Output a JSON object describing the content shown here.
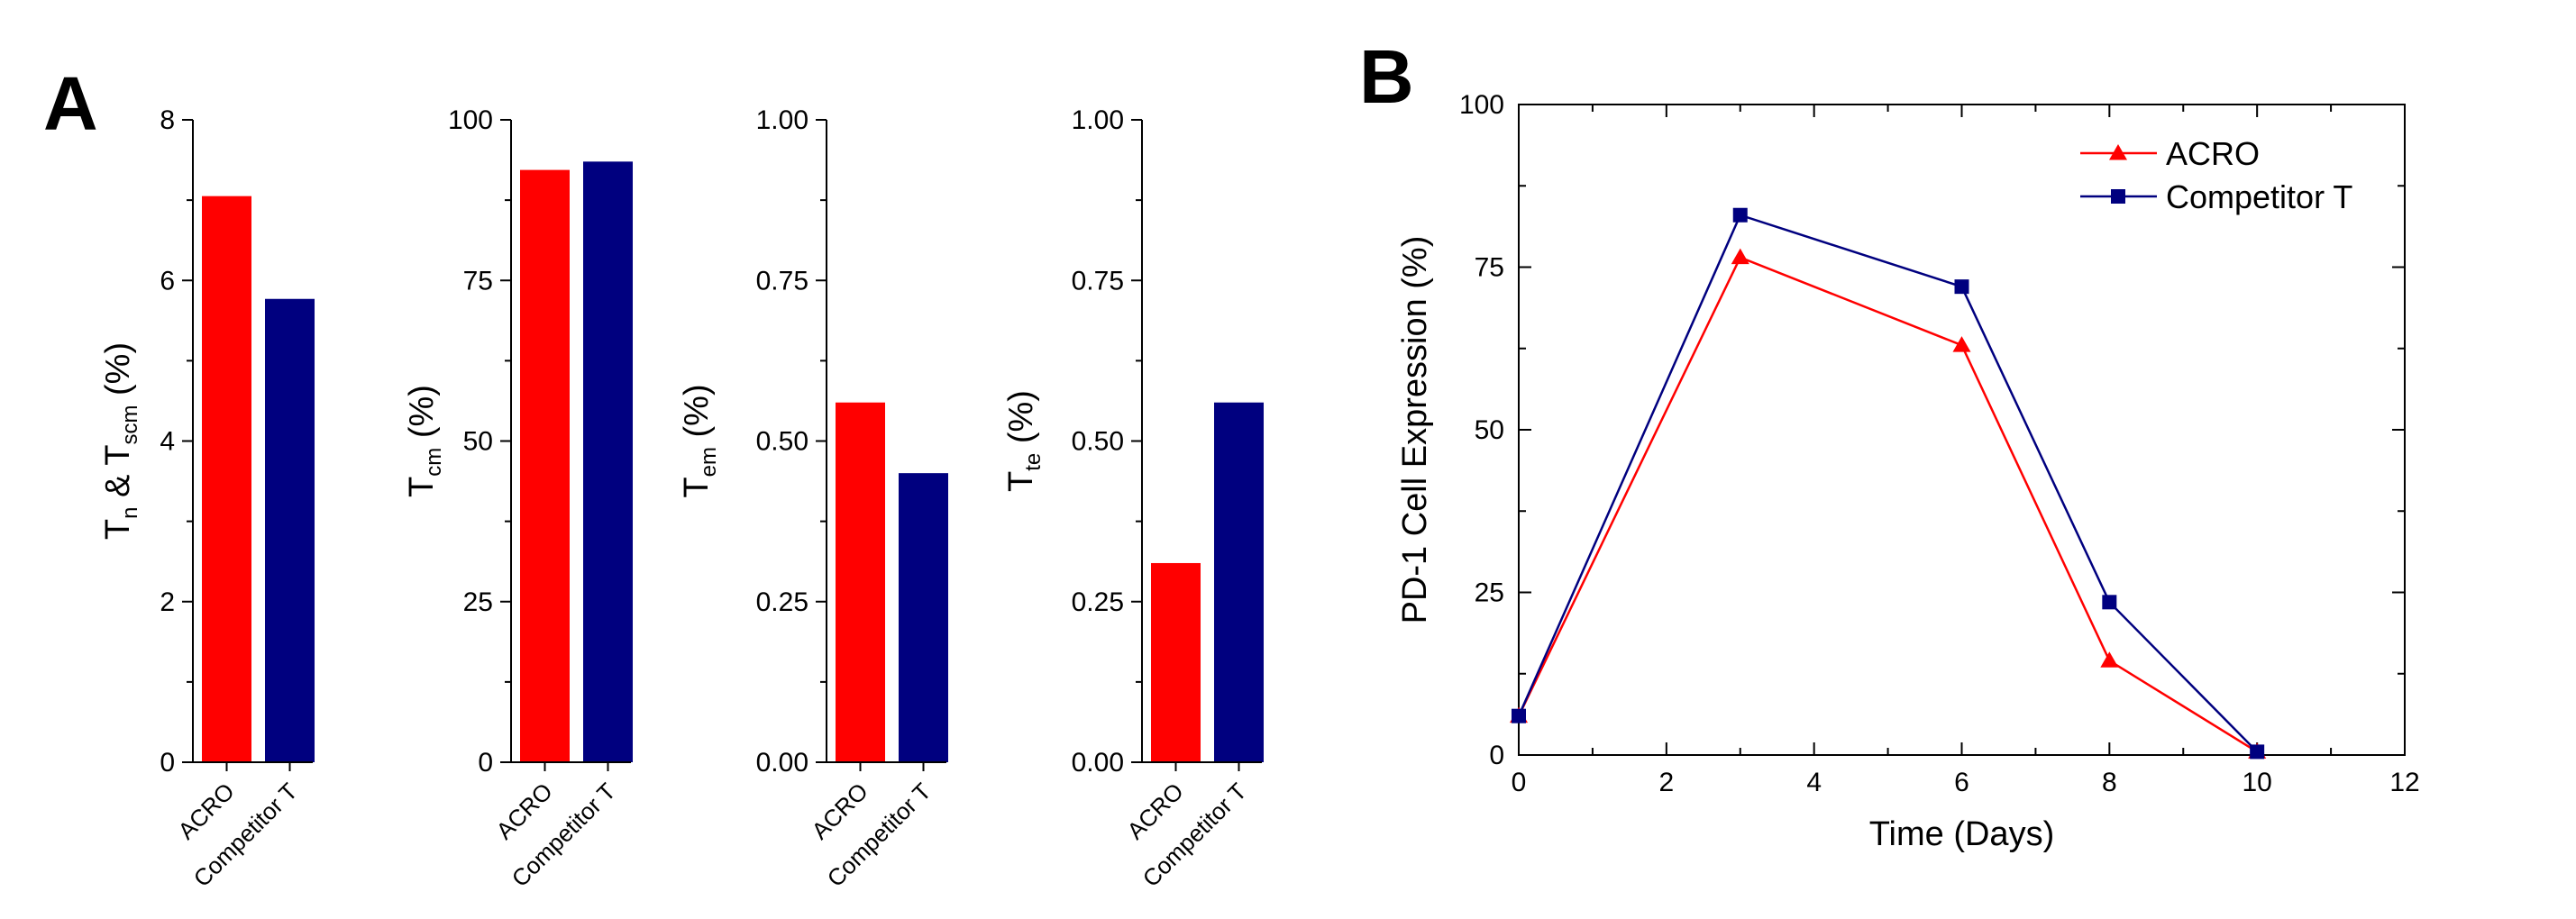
{
  "panels": {
    "a_label": "A",
    "b_label": "B"
  },
  "chart_data": [
    {
      "type": "bar",
      "categories": [
        "ACRO",
        "Competitor T"
      ],
      "values": [
        7.05,
        5.77
      ],
      "colors": [
        "#ff0000",
        "#00007f"
      ],
      "ylabel": "T",
      "ylabel_sub": "n",
      "ylabel_mid": " & T",
      "ylabel_sub2": "scm",
      "ylabel_unit": " (%)",
      "ylim": [
        0,
        8
      ],
      "yticks": [
        "0",
        "2",
        "4",
        "6",
        "8"
      ]
    },
    {
      "type": "bar",
      "categories": [
        "ACRO",
        "Competitor T"
      ],
      "values": [
        92.2,
        93.5
      ],
      "colors": [
        "#ff0000",
        "#00007f"
      ],
      "ylabel": "T",
      "ylabel_sub": "cm",
      "ylabel_unit": " (%)",
      "ylim": [
        0,
        100
      ],
      "yticks": [
        "0",
        "25",
        "50",
        "75",
        "100"
      ]
    },
    {
      "type": "bar",
      "categories": [
        "ACRO",
        "Competitor T"
      ],
      "values": [
        0.56,
        0.45
      ],
      "colors": [
        "#ff0000",
        "#00007f"
      ],
      "ylabel": "T",
      "ylabel_sub": "em",
      "ylabel_unit": " (%)",
      "ylim": [
        0,
        1
      ],
      "yticks": [
        "0.00",
        "0.25",
        "0.50",
        "0.75",
        "1.00"
      ]
    },
    {
      "type": "bar",
      "categories": [
        "ACRO",
        "Competitor T"
      ],
      "values": [
        0.31,
        0.56
      ],
      "colors": [
        "#ff0000",
        "#00007f"
      ],
      "ylabel": "T",
      "ylabel_sub": "te",
      "ylabel_unit": " (%)",
      "ylim": [
        0,
        1
      ],
      "yticks": [
        "0.00",
        "0.25",
        "0.50",
        "0.75",
        "1.00"
      ]
    },
    {
      "type": "line",
      "xlabel": "Time (Days)",
      "ylabel": "PD-1 Cell Expression (%)",
      "xlim": [
        0,
        12
      ],
      "ylim": [
        0,
        100
      ],
      "xticks": [
        "0",
        "2",
        "4",
        "6",
        "8",
        "10",
        "12"
      ],
      "yticks": [
        "0",
        "25",
        "50",
        "75",
        "100"
      ],
      "legend_position": "top-right",
      "series": [
        {
          "name": "ACRO",
          "color": "#ff0000",
          "marker": "triangle",
          "x": [
            0,
            3,
            6,
            8,
            10
          ],
          "y": [
            6,
            76.5,
            63,
            14.5,
            0.5
          ]
        },
        {
          "name": "Competitor T",
          "color": "#00007f",
          "marker": "square",
          "x": [
            0,
            3,
            6,
            8,
            10
          ],
          "y": [
            6,
            83,
            72,
            23.5,
            0.5
          ]
        }
      ]
    }
  ]
}
